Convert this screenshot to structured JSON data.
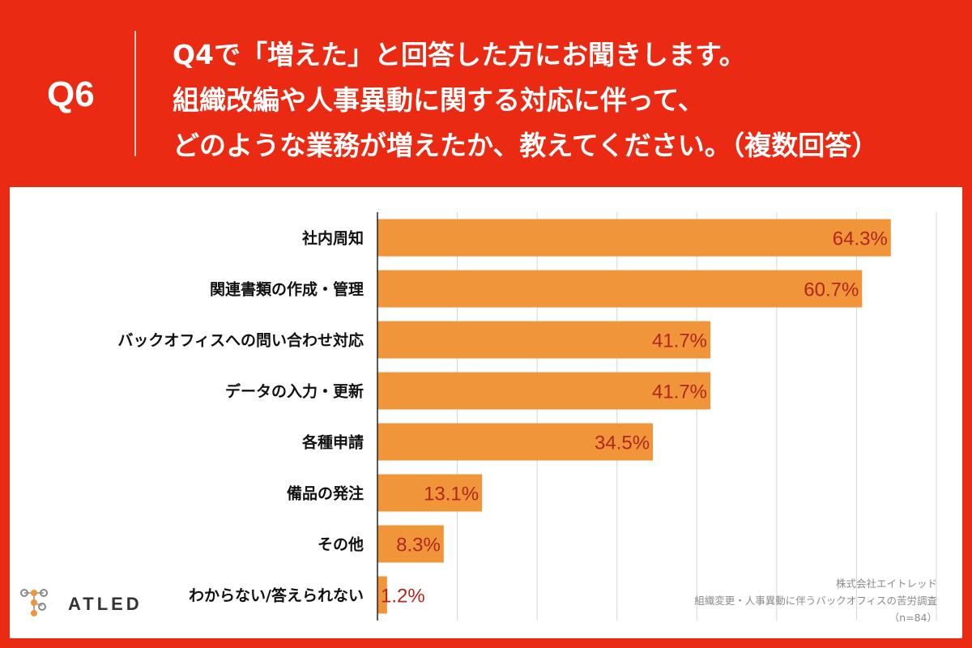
{
  "header": {
    "qnum": "Q6",
    "lines": [
      "Q4で「増えた」と回答した方にお聞きします。",
      "組織改編や人事異動に関する対応に伴って、",
      "どのような業務が増えたか、教えてください。（複数回答）"
    ]
  },
  "logo": {
    "text": "ATLED",
    "icon": "atled-molecule-logo-icon"
  },
  "credit": {
    "company": "株式会社エイトレッド",
    "survey": "組織変更・人事異動に伴うバックオフィスの苦労調査",
    "n": "（n=84）"
  },
  "colors": {
    "frame": "#ea2a13",
    "bar": "#f0953a",
    "bar_label": "#b3261e",
    "grid": "#d4d4d4",
    "axis": "#222222"
  },
  "chart_data": {
    "type": "bar",
    "orientation": "horizontal",
    "categories": [
      "社内周知",
      "関連書類の作成・管理",
      "バックオフィスへの問い合わせ対応",
      "データの入力・更新",
      "各種申請",
      "備品の発注",
      "その他",
      "わからない/答えられない"
    ],
    "values": [
      64.3,
      60.7,
      41.7,
      41.7,
      34.5,
      13.1,
      8.3,
      1.2
    ],
    "value_labels": [
      "64.3%",
      "60.7%",
      "41.7%",
      "41.7%",
      "34.5%",
      "13.1%",
      "8.3%",
      "1.2%"
    ],
    "xlim": [
      0,
      70
    ],
    "grid": true
  }
}
